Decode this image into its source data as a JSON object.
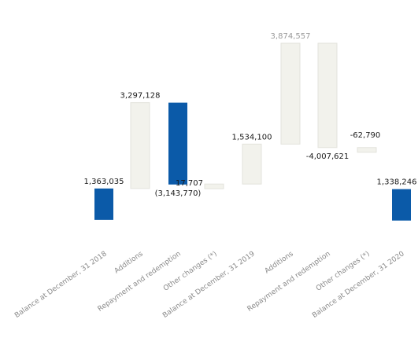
{
  "chart_data": {
    "type": "bar",
    "subtype": "waterfall",
    "title": "",
    "xlabel": "",
    "ylabel": "",
    "categories": [
      "Balance at December, 31 2018",
      "Additions",
      "Repayment and redemption",
      "Other changes (*)",
      "Balance at December, 31 2019",
      "Additions",
      "Repayment and redemption",
      "Other changes (*)",
      "Balance at December, 31 2020"
    ],
    "values": [
      1363035,
      3297128,
      -3143770,
      17707,
      1534100,
      3874557,
      -4007621,
      -62790,
      1338246
    ],
    "labels": [
      "1,363,035",
      "3,297,128",
      "(3,143,770)",
      "17,707",
      "1,534,100",
      "3,874,557",
      "-4,007,621",
      "-62,790",
      "1,338,246"
    ],
    "bar_kind": [
      "total",
      "increase",
      "decrease",
      "increase",
      "increase",
      "increase",
      "decrease",
      "decrease",
      "total"
    ],
    "colors": {
      "total": "#0b5aa8",
      "increase": "#f2f2ec",
      "decrease": "#0b5aa8",
      "decrease_alt": "#f2f2ec",
      "bar_edge": "#e3e3dc"
    },
    "bar_fill": [
      "#0b5aa8",
      "#f2f2ec",
      "#0b5aa8",
      "#f2f2ec",
      "#f2f2ec",
      "#f2f2ec",
      "#f2f2ec",
      "#f2f2ec",
      "#0b5aa8"
    ],
    "grid": false,
    "legend": "none"
  }
}
